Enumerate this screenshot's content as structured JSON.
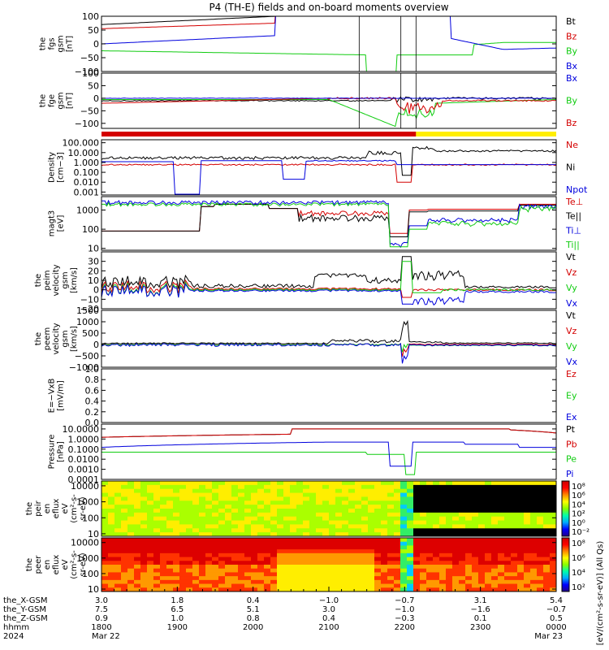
{
  "title": "P4 (TH-E) fields and on-board moments overview",
  "colors": {
    "black": "#000000",
    "red": "#d40000",
    "green": "#11cc11",
    "blue": "#0000dd",
    "yellow": "#ffee00"
  },
  "chart_data": [
    {
      "type": "line",
      "id": "fgs",
      "ylabel_lines": [
        "the",
        "fgs",
        "gsm",
        "[nT]"
      ],
      "ylim": [
        -100,
        100
      ],
      "ticks": [
        "100",
        "50",
        "0",
        "−50",
        "−100"
      ],
      "tick_values": [
        100,
        50,
        0,
        -50,
        -100
      ],
      "legend": [
        {
          "name": "Bt",
          "color": "#000000"
        },
        {
          "name": "Bz",
          "color": "#d40000"
        },
        {
          "name": "By",
          "color": "#11cc11"
        },
        {
          "name": "Bx",
          "color": "#0000dd"
        }
      ]
    },
    {
      "type": "line",
      "id": "fge",
      "ylabel_lines": [
        "the",
        "fge",
        "gsm",
        "[nT]"
      ],
      "ylim": [
        -120,
        100
      ],
      "ticks": [
        "100",
        "50",
        "0",
        "−50",
        "−100"
      ],
      "tick_values": [
        100,
        50,
        0,
        -50,
        -100
      ],
      "legend": [
        {
          "name": "Bx",
          "color": "#0000dd"
        },
        {
          "name": "By",
          "color": "#11cc11"
        },
        {
          "name": "Bz",
          "color": "#d40000"
        }
      ]
    },
    {
      "type": "line",
      "id": "density",
      "ylabel_lines": [
        "Density",
        "[cm−3]"
      ],
      "log": true,
      "ylim": [
        0.0005,
        200
      ],
      "ticks": [
        "100.000",
        "10.000",
        "1.000",
        "0.100",
        "0.010",
        "0.001"
      ],
      "tick_values": [
        100,
        10,
        1,
        0.1,
        0.01,
        0.001
      ],
      "legend": [
        {
          "name": "Ne",
          "color": "#d40000"
        },
        {
          "name": "Ni",
          "color": "#000000"
        },
        {
          "name": "Npot",
          "color": "#0000dd"
        }
      ]
    },
    {
      "type": "line",
      "id": "temp",
      "ylabel_lines": [
        "magt3",
        "[eV]"
      ],
      "log": true,
      "ylim": [
        8,
        5000
      ],
      "ticks": [
        "1000",
        "100",
        "10"
      ],
      "tick_values": [
        1000,
        100,
        10
      ],
      "legend": [
        {
          "name": "Te⊥",
          "color": "#d40000"
        },
        {
          "name": "Te||",
          "color": "#000000"
        },
        {
          "name": "Ti⊥",
          "color": "#0000dd"
        },
        {
          "name": "Ti||",
          "color": "#11cc11"
        }
      ]
    },
    {
      "type": "line",
      "id": "peim",
      "ylabel_lines": [
        "the",
        "peim",
        "velocity",
        "gsm",
        "[km/s]"
      ],
      "ylim": [
        -20,
        40
      ],
      "ticks": [
        "30",
        "20",
        "10",
        "0",
        "−10",
        "−20"
      ],
      "tick_values": [
        30,
        20,
        10,
        0,
        -10,
        -20
      ],
      "legend": [
        {
          "name": "Vt",
          "color": "#000000"
        },
        {
          "name": "Vz",
          "color": "#d40000"
        },
        {
          "name": "Vy",
          "color": "#11cc11"
        },
        {
          "name": "Vx",
          "color": "#0000dd"
        }
      ]
    },
    {
      "type": "line",
      "id": "peem",
      "ylabel_lines": [
        "the",
        "peem",
        "velocity",
        "gsm",
        "[km/s]"
      ],
      "ylim": [
        -1000,
        1500
      ],
      "ticks": [
        "1500",
        "1000",
        "500",
        "0",
        "−500",
        "−1000"
      ],
      "tick_values": [
        1500,
        1000,
        500,
        0,
        -500,
        -1000
      ],
      "legend": [
        {
          "name": "Vt",
          "color": "#000000"
        },
        {
          "name": "Vz",
          "color": "#d40000"
        },
        {
          "name": "Vy",
          "color": "#11cc11"
        },
        {
          "name": "Vx",
          "color": "#0000dd"
        }
      ]
    },
    {
      "type": "line",
      "id": "efield",
      "ylabel_lines": [
        "E=−VxB",
        "[mV/m]"
      ],
      "ylim": [
        0,
        1
      ],
      "ticks": [
        "1.0",
        "0.8",
        "0.6",
        "0.4",
        "0.2",
        "0.0"
      ],
      "tick_values": [
        1,
        0.8,
        0.6,
        0.4,
        0.2,
        0
      ],
      "legend": [
        {
          "name": "Ez",
          "color": "#d40000"
        },
        {
          "name": "Ey",
          "color": "#11cc11"
        },
        {
          "name": "Ex",
          "color": "#0000dd"
        }
      ]
    },
    {
      "type": "line",
      "id": "pressure",
      "ylabel_lines": [
        "Pressure",
        "[nPa]"
      ],
      "log": true,
      "ylim": [
        0.0001,
        30
      ],
      "ticks": [
        "10.0000",
        "1.0000",
        "0.1000",
        "0.0100",
        "0.0010",
        "0.0001"
      ],
      "tick_values": [
        10,
        1,
        0.1,
        0.01,
        0.001,
        0.0001
      ],
      "legend": [
        {
          "name": "Pt",
          "color": "#000000"
        },
        {
          "name": "Pb",
          "color": "#d40000"
        },
        {
          "name": "Pe",
          "color": "#11cc11"
        },
        {
          "name": "Pi",
          "color": "#0000dd"
        }
      ]
    },
    {
      "type": "heatmap",
      "id": "peir",
      "ylabel_lines": [
        "the",
        "peir",
        "en",
        "eflux",
        "eV",
        "(cm²-s-",
        "sr-eV)"
      ],
      "log": true,
      "ylim": [
        7,
        20000
      ],
      "ticks": [
        "10000",
        "1000",
        "100",
        "10"
      ],
      "tick_values": [
        10000,
        1000,
        100,
        10
      ],
      "colorbar_ticks": [
        "10⁸",
        "10⁶",
        "10⁴",
        "10²",
        "10⁰",
        "10⁻²"
      ]
    },
    {
      "type": "heatmap",
      "id": "peer",
      "ylabel_lines": [
        "the",
        "peer",
        "en",
        "eflux",
        "eV",
        "(cm²-s-",
        "sr-eV)"
      ],
      "log": true,
      "ylim": [
        7,
        20000
      ],
      "ticks": [
        "10000",
        "1000",
        "100",
        "10"
      ],
      "tick_values": [
        10000,
        1000,
        100,
        10
      ],
      "colorbar_ticks": [
        "10⁸",
        "10⁶",
        "10⁴",
        "10²"
      ]
    }
  ],
  "colorbar_label": "[eV/(cm²-s-sr-eV)] (All Qs)",
  "time_axis": {
    "hours": [
      18.0,
      19.0,
      20.0,
      21.0,
      22.0,
      23.0,
      24.0
    ],
    "rows": [
      {
        "label": "the_X-GSM",
        "values": [
          "3.0",
          "1.8",
          "0.4",
          "−1.0",
          "−0.7",
          "3.1",
          "5.4"
        ]
      },
      {
        "label": "the_Y-GSM",
        "values": [
          "7.5",
          "6.5",
          "5.1",
          "3.0",
          "−1.0",
          "−1.6",
          "−0.7"
        ]
      },
      {
        "label": "the_Z-GSM",
        "values": [
          "0.9",
          "1.0",
          "0.8",
          "0.4",
          "−0.3",
          "0.1",
          "0.5"
        ]
      },
      {
        "label": "hhmm",
        "values": [
          "1800",
          "1900",
          "2000",
          "2100",
          "2200",
          "2300",
          "0000"
        ]
      },
      {
        "label": "2024",
        "values": [
          "Mar 22",
          "",
          "",
          "",
          "",
          "",
          "Mar 23"
        ]
      }
    ]
  }
}
